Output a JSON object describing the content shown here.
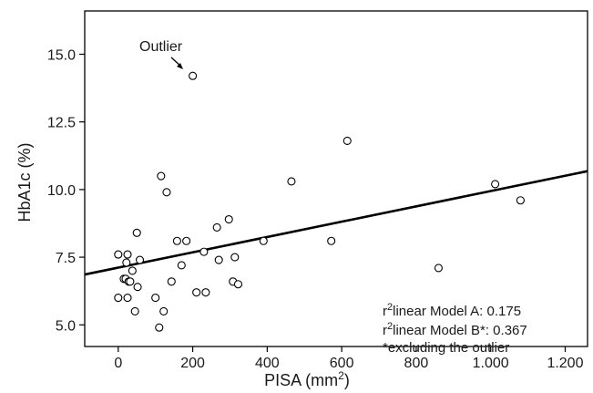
{
  "chart_data": {
    "type": "scatter",
    "xlabel": "PISA (mm",
    "xlabel_sup": "2",
    "xlabel_suffix": ")",
    "ylabel": "HbA1c (%)",
    "xlim": [
      -90,
      1260
    ],
    "ylim": [
      4.2,
      16.6
    ],
    "x_ticks": [
      0,
      200,
      400,
      600,
      800,
      1000,
      1200
    ],
    "x_tick_labels": [
      "0",
      "200",
      "400",
      "600",
      "800",
      "1.000",
      "1.200"
    ],
    "y_ticks": [
      5.0,
      7.5,
      10.0,
      12.5,
      15.0
    ],
    "y_tick_labels": [
      "5.0",
      "7.5",
      "10.0",
      "12.5",
      "15.0"
    ],
    "points": [
      {
        "x": 0,
        "y": 7.6
      },
      {
        "x": 0,
        "y": 6.0
      },
      {
        "x": 15,
        "y": 6.7
      },
      {
        "x": 20,
        "y": 6.7
      },
      {
        "x": 22,
        "y": 7.3
      },
      {
        "x": 25,
        "y": 7.6
      },
      {
        "x": 25,
        "y": 6.0
      },
      {
        "x": 28,
        "y": 6.6
      },
      {
        "x": 32,
        "y": 6.6
      },
      {
        "x": 38,
        "y": 7.0
      },
      {
        "x": 45,
        "y": 5.5
      },
      {
        "x": 50,
        "y": 8.4
      },
      {
        "x": 52,
        "y": 6.4
      },
      {
        "x": 58,
        "y": 7.4
      },
      {
        "x": 100,
        "y": 6.0
      },
      {
        "x": 110,
        "y": 4.9
      },
      {
        "x": 115,
        "y": 10.5
      },
      {
        "x": 122,
        "y": 5.5
      },
      {
        "x": 130,
        "y": 9.9
      },
      {
        "x": 143,
        "y": 6.6
      },
      {
        "x": 158,
        "y": 8.1
      },
      {
        "x": 170,
        "y": 7.2
      },
      {
        "x": 183,
        "y": 8.1
      },
      {
        "x": 210,
        "y": 6.2
      },
      {
        "x": 230,
        "y": 7.7
      },
      {
        "x": 235,
        "y": 6.2
      },
      {
        "x": 265,
        "y": 8.6
      },
      {
        "x": 270,
        "y": 7.4
      },
      {
        "x": 297,
        "y": 8.9
      },
      {
        "x": 308,
        "y": 6.6
      },
      {
        "x": 313,
        "y": 7.5
      },
      {
        "x": 322,
        "y": 6.5
      },
      {
        "x": 390,
        "y": 8.1
      },
      {
        "x": 465,
        "y": 10.3
      },
      {
        "x": 572,
        "y": 8.1
      },
      {
        "x": 615,
        "y": 11.8
      },
      {
        "x": 860,
        "y": 7.1
      },
      {
        "x": 1012,
        "y": 10.2
      },
      {
        "x": 1080,
        "y": 9.6
      },
      {
        "x": 200,
        "y": 14.2
      }
    ],
    "regression_line": {
      "x": [
        -90,
        1260
      ],
      "y": [
        6.86,
        10.68
      ]
    },
    "outlier": {
      "label": "Outlier",
      "x": 200,
      "y": 14.2
    },
    "annotations": [
      {
        "sup": "2",
        "prefix": "r",
        "text": "linear Model A: 0.175"
      },
      {
        "sup": "2",
        "prefix": "r",
        "text": "linear Model B*: 0.367"
      },
      {
        "sup": "",
        "prefix": "",
        "text": "*excluding the outlier"
      }
    ],
    "grid": false,
    "legend": "none"
  }
}
